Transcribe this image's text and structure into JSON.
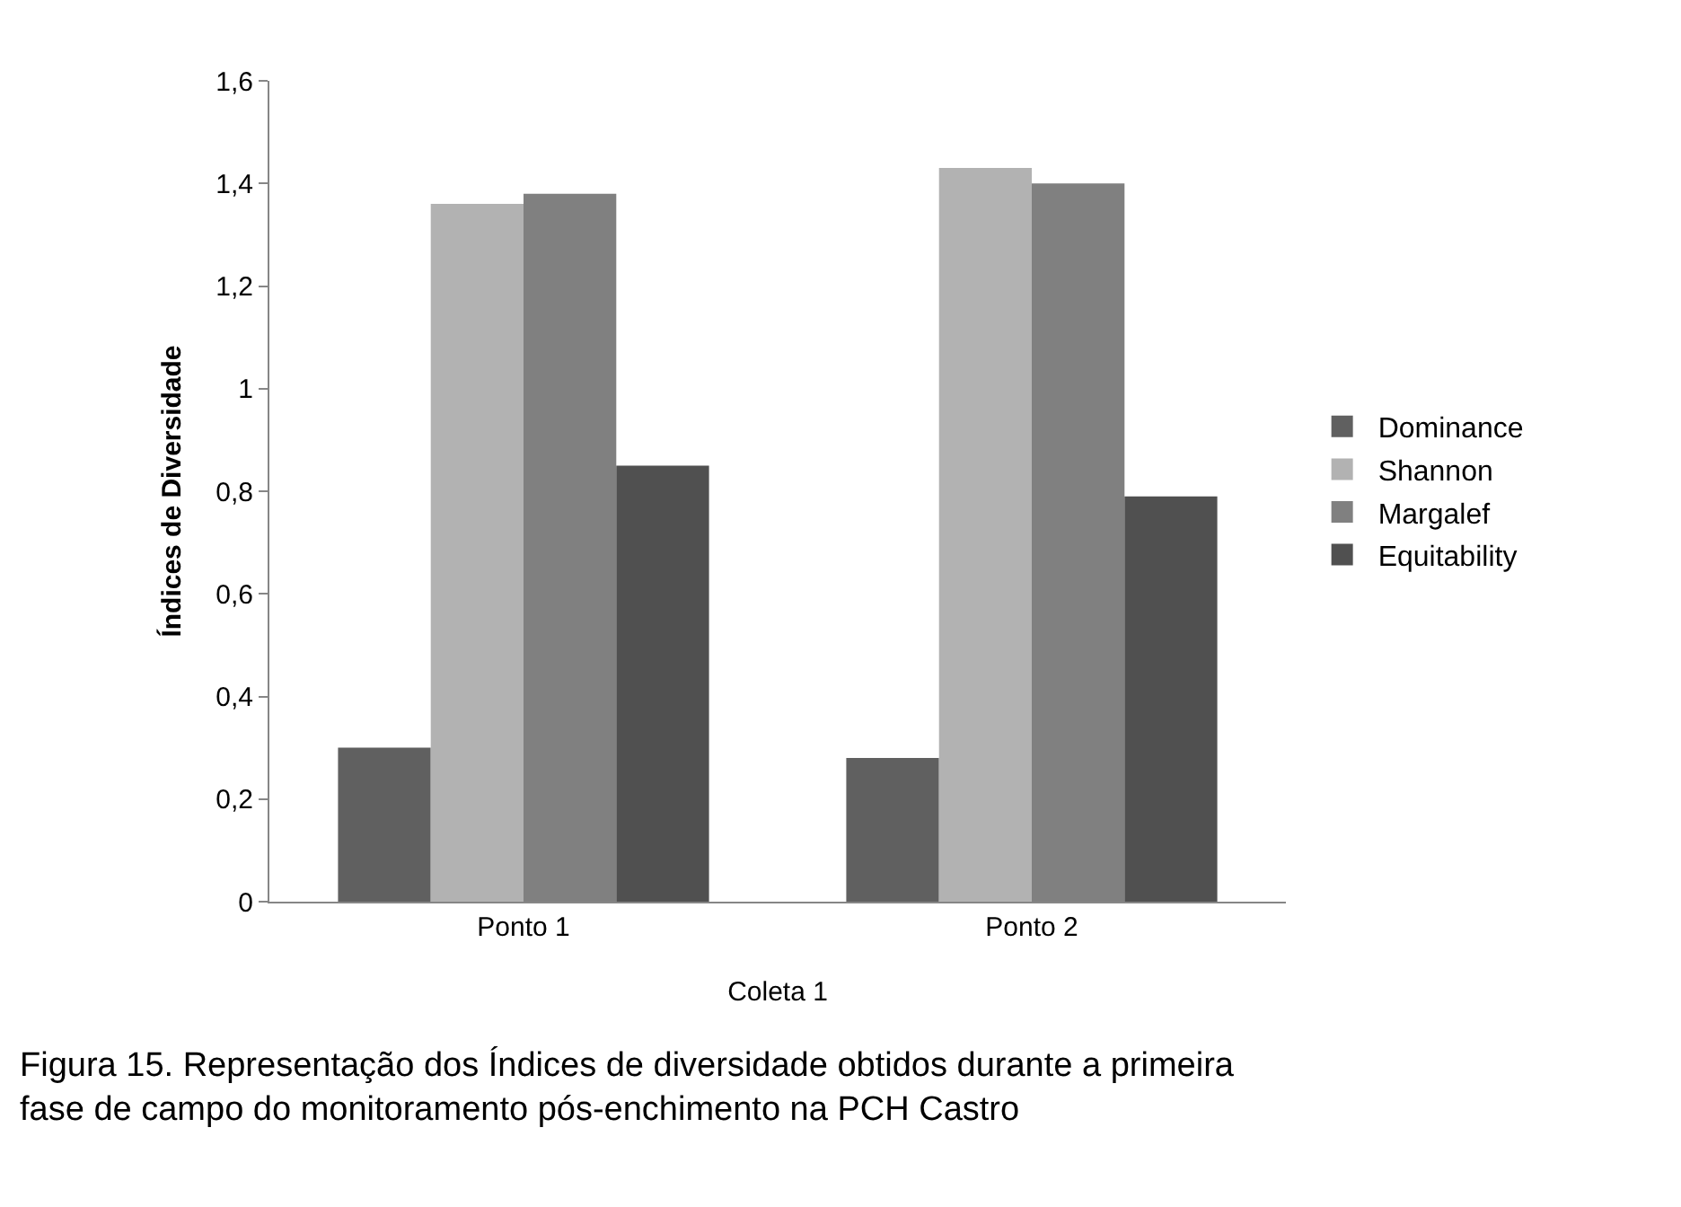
{
  "chart_data": {
    "type": "bar",
    "ylabel": "Índices de Diversidade",
    "xlabel": "Coleta 1",
    "categories": [
      "Ponto 1",
      "Ponto 2"
    ],
    "series": [
      {
        "name": "Dominance",
        "color": "#606060",
        "values": [
          0.3,
          0.28
        ]
      },
      {
        "name": "Shannon",
        "color": "#b2b2b2",
        "values": [
          1.36,
          1.43
        ]
      },
      {
        "name": "Margalef",
        "color": "#808080",
        "values": [
          1.38,
          1.4
        ]
      },
      {
        "name": "Equitability",
        "color": "#505050",
        "values": [
          0.85,
          0.79
        ]
      }
    ],
    "ylim": [
      0,
      1.6
    ],
    "yticks": [
      0,
      {
        "value": 0.2,
        "label": "0,2"
      },
      {
        "value": 0.4,
        "label": "0,4"
      },
      {
        "value": 0.6,
        "label": "0,6"
      },
      {
        "value": 0.8,
        "label": "0,8"
      },
      1,
      {
        "value": 1.2,
        "label": "1,2"
      },
      {
        "value": 1.4,
        "label": "1,4"
      },
      {
        "value": 1.6,
        "label": "1,6"
      }
    ],
    "legend": "right",
    "annotations": [
      "Figura 15. Representação dos Índices de diversidade obtidos durante a primeira fase de campo do monitoramento pós-enchimento na PCH Castro"
    ]
  }
}
